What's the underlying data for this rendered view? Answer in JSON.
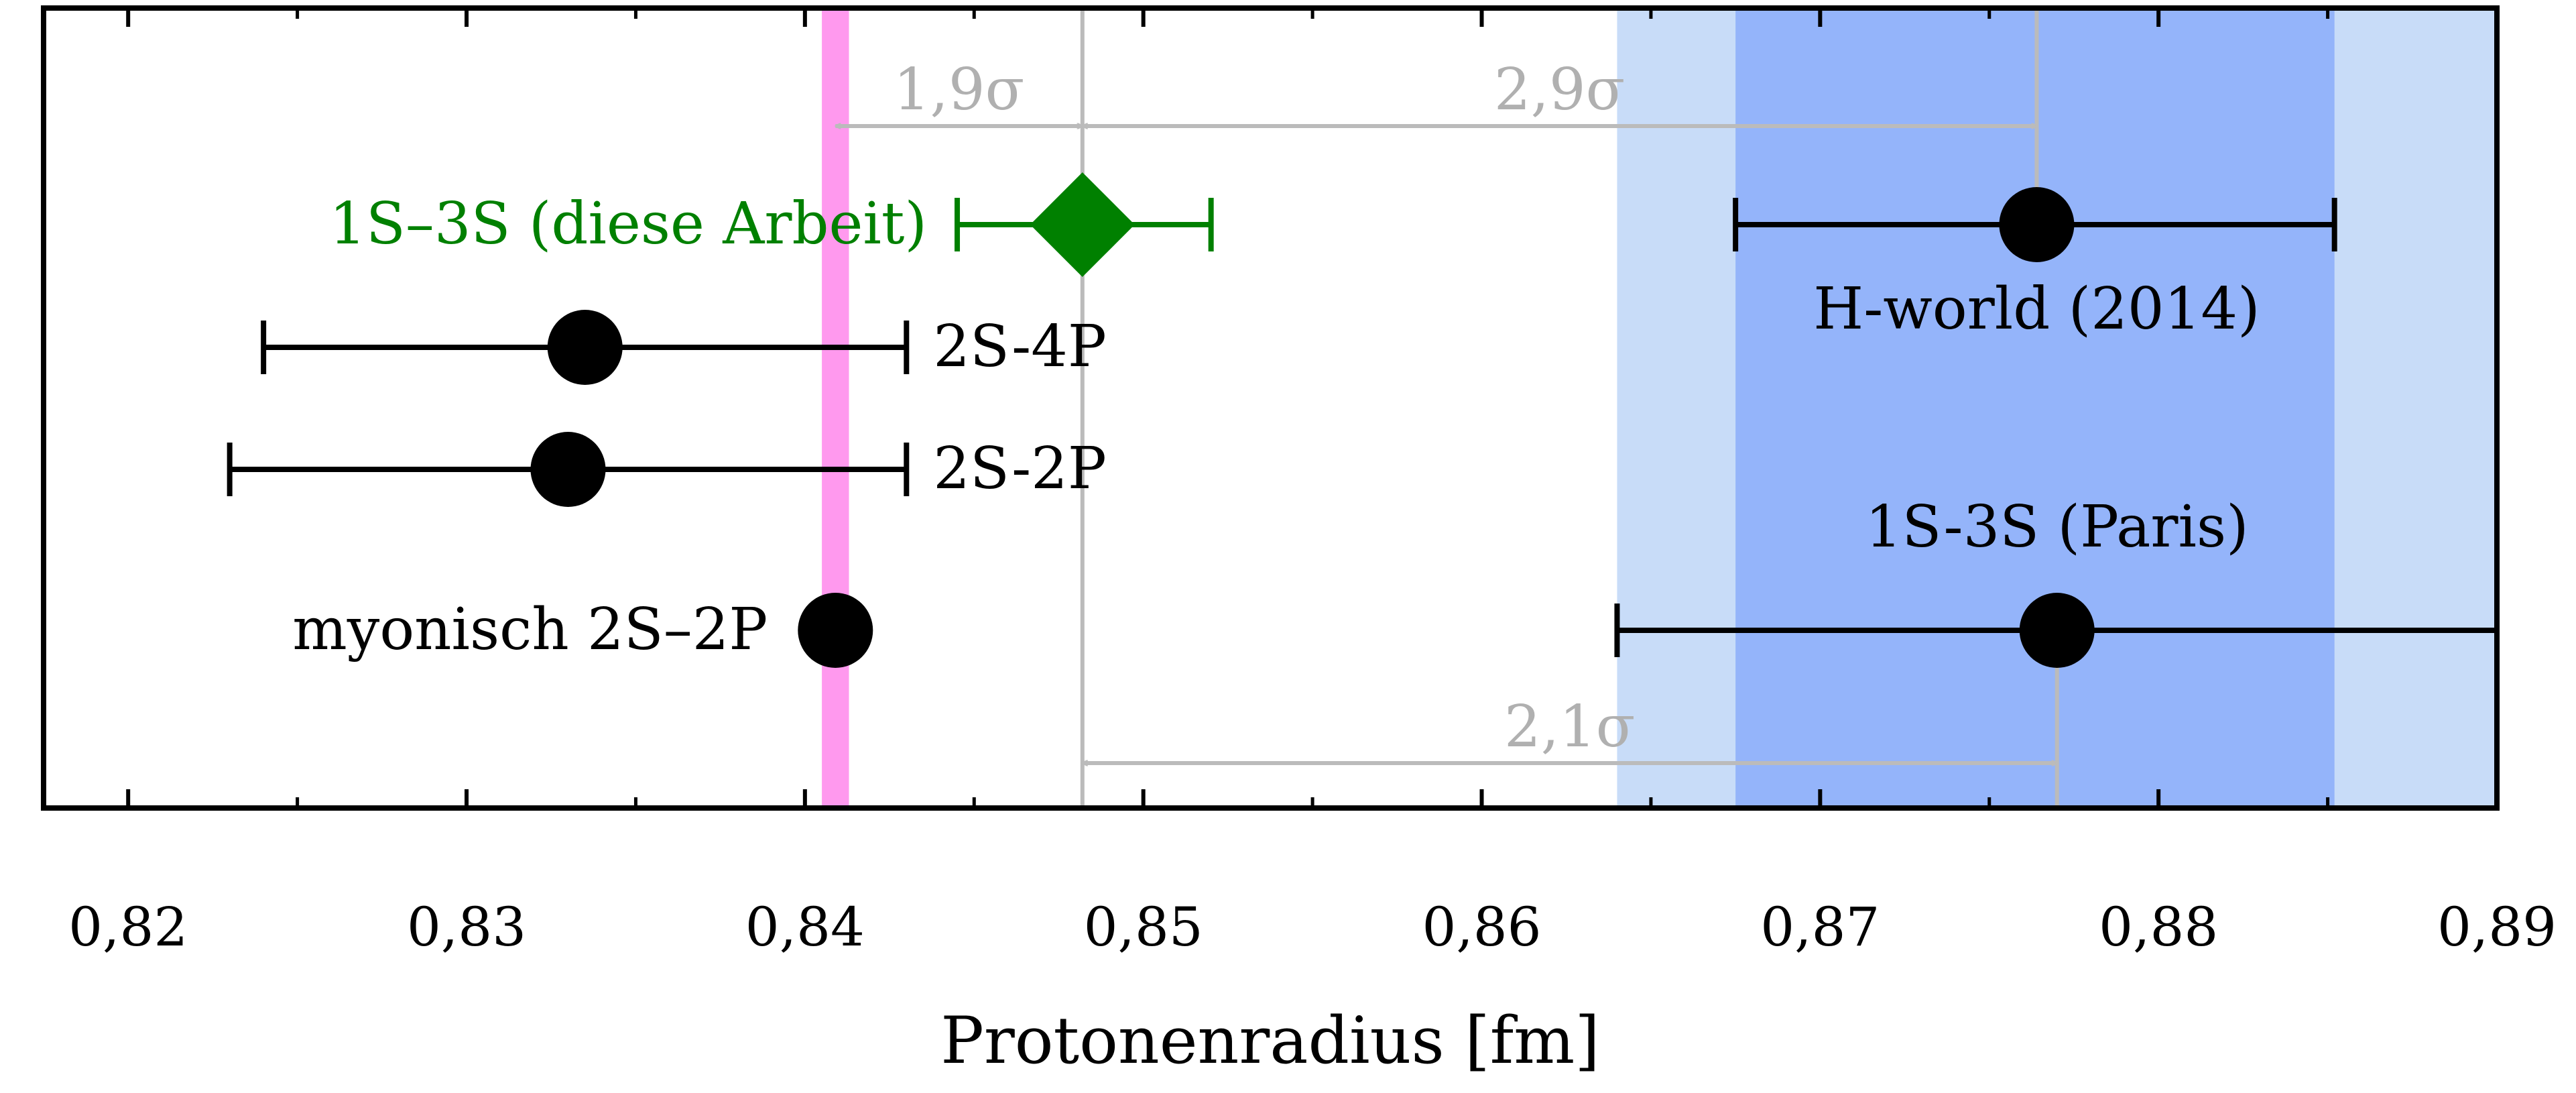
{
  "chart_data": {
    "type": "scatter",
    "title": "",
    "xlabel": "Protonenradius [fm]",
    "ylabel": "",
    "xlim": [
      0.8175,
      0.89
    ],
    "x_ticks": [
      0.82,
      0.83,
      0.84,
      0.85,
      0.86,
      0.87,
      0.88,
      0.89
    ],
    "x_tick_labels": [
      "0,82",
      "0,83",
      "0,84",
      "0,85",
      "0,86",
      "0,87",
      "0,88",
      "0,89"
    ],
    "grid": false,
    "legend": "none",
    "colors": {
      "marker": "#000000",
      "this_work": "#008000",
      "band_pink": "#ff99ee",
      "band_light": "#c8dcf8",
      "band_dark": "#94b4fa",
      "reference": "#bbbbbb"
    },
    "points": [
      {
        "label": "1S–3S (diese Arbeit)",
        "x": 0.8482,
        "xerr_low": 0.8445,
        "xerr_high": 0.852,
        "marker": "diamond",
        "color": "#008000",
        "label_side": "left"
      },
      {
        "label": "H-world (2014)",
        "x": 0.8764,
        "xerr_low": 0.8675,
        "xerr_high": 0.8852,
        "marker": "circle",
        "color": "#000000",
        "label_side": "below"
      },
      {
        "label": "2S-4P",
        "x": 0.8335,
        "xerr_low": 0.824,
        "xerr_high": 0.843,
        "marker": "circle",
        "color": "#000000",
        "label_side": "right"
      },
      {
        "label": "2S-2P",
        "x": 0.833,
        "xerr_low": 0.823,
        "xerr_high": 0.843,
        "marker": "circle",
        "color": "#000000",
        "label_side": "right"
      },
      {
        "label": "1S-3S (Paris)",
        "x": 0.877,
        "xerr_low": 0.864,
        "xerr_high": 0.89,
        "marker": "circle",
        "color": "#000000",
        "label_side": "above"
      },
      {
        "label": "myonisch 2S–2P",
        "x": 0.8409,
        "xerr_low": 0.8404,
        "xerr_high": 0.8413,
        "marker": "circle",
        "color": "#000000",
        "label_side": "left"
      }
    ],
    "bands": [
      {
        "x0": 0.864,
        "x1": 0.89,
        "color": "#c8dcf8"
      },
      {
        "x0": 0.8675,
        "x1": 0.8852,
        "color": "#94b4fa"
      },
      {
        "x0": 0.8405,
        "x1": 0.8413,
        "color": "#ff99ee"
      }
    ],
    "reference_lines": [
      {
        "x": 0.8482
      },
      {
        "x": 0.8764,
        "to_row": 0
      },
      {
        "x": 0.877,
        "from_row": 4
      }
    ],
    "annotations": [
      {
        "text": "1,9σ",
        "x_from": 0.8482,
        "x_to": 0.8409,
        "row": 0
      },
      {
        "text": "2,9σ",
        "x_from": 0.8482,
        "x_to": 0.8764,
        "row": 0
      },
      {
        "text": "2,1σ",
        "x_from": 0.8482,
        "x_to": 0.877,
        "row": 5
      }
    ]
  }
}
